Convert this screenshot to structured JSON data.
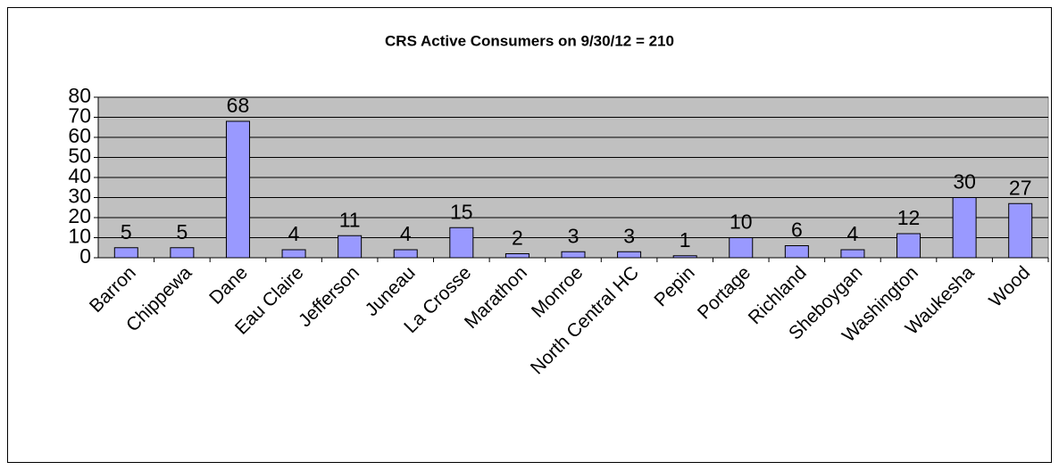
{
  "chart_data": {
    "type": "bar",
    "title": "CRS Active Consumers on 9/30/12 = 210",
    "categories": [
      "Barron",
      "Chippewa",
      "Dane",
      "Eau Claire",
      "Jefferson",
      "Juneau",
      "La Crosse",
      "Marathon",
      "Monroe",
      "North Central HC",
      "Pepin",
      "Portage",
      "Richland",
      "Sheboygan",
      "Washington",
      "Waukesha",
      "Wood"
    ],
    "values": [
      5,
      5,
      68,
      4,
      11,
      4,
      15,
      2,
      3,
      3,
      1,
      10,
      6,
      4,
      12,
      30,
      27
    ],
    "color": "#9999ff",
    "ylim": [
      0,
      80
    ],
    "yticks": [
      0,
      10,
      20,
      30,
      40,
      50,
      60,
      70,
      80
    ],
    "grid": true
  }
}
